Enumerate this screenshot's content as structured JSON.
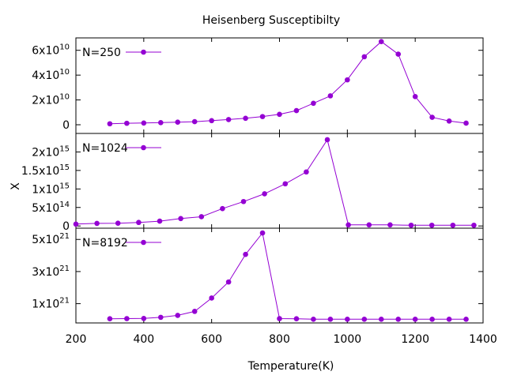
{
  "chart_data": {
    "type": "line",
    "title": "Heisenberg Susceptibilty",
    "xlabel": "Temperature(K)",
    "ylabel": "X",
    "xlim": [
      200,
      1400
    ],
    "xticks": [
      "200",
      "400",
      "600",
      "800",
      "1000",
      "1200",
      "1400"
    ],
    "series_color": "#9400d3",
    "legend_position": "top-left",
    "grid": false,
    "panels": [
      {
        "name": "N=250",
        "ylim": [
          -7000000000.0,
          70000000000.0
        ],
        "yticks": [
          {
            "value": 0,
            "base": "0",
            "exp": ""
          },
          {
            "value": 20000000000.0,
            "base": "2x10",
            "exp": "10"
          },
          {
            "value": 40000000000.0,
            "base": "4x10",
            "exp": "10"
          },
          {
            "value": 60000000000.0,
            "base": "6x10",
            "exp": "10"
          }
        ],
        "x": [
          300,
          350,
          400,
          450,
          500,
          550,
          600,
          650,
          700,
          750,
          800,
          850,
          900,
          950,
          1000,
          1050,
          1100,
          1150,
          1200,
          1250,
          1300,
          1350
        ],
        "y": [
          800000000.0,
          1200000000.0,
          1400000000.0,
          1700000000.0,
          2100000000.0,
          2500000000.0,
          3300000000.0,
          4200000000.0,
          5200000000.0,
          6600000000.0,
          8400000000.0,
          11400000000.0,
          17300000000.0,
          23300000000.0,
          36200000000.0,
          54800000000.0,
          67000000000.0,
          56900000000.0,
          22700000000.0,
          6000000000.0,
          3000000000.0,
          1300000000.0
        ]
      },
      {
        "name": "N=1024",
        "ylim": [
          -60000000000000.0,
          2500000000000000.0
        ],
        "yticks": [
          {
            "value": 0,
            "base": "0",
            "exp": ""
          },
          {
            "value": 500000000000000.0,
            "base": "5x10",
            "exp": "14"
          },
          {
            "value": 1000000000000000.0,
            "base": "1x10",
            "exp": "15"
          },
          {
            "value": 1500000000000000.0,
            "base": "1.5x10",
            "exp": "15"
          },
          {
            "value": 2000000000000000.0,
            "base": "2x10",
            "exp": "15"
          }
        ],
        "x": [
          200,
          262,
          324,
          385,
          447,
          509,
          570,
          632,
          694,
          756,
          817,
          879,
          941,
          1003,
          1064,
          1126,
          1188,
          1249,
          1311,
          1373
        ],
        "y": [
          50000000000000.0,
          70000000000000.0,
          75000000000000.0,
          95000000000000.0,
          130000000000000.0,
          200000000000000.0,
          250000000000000.0,
          470000000000000.0,
          660000000000000.0,
          870000000000000.0,
          1140000000000000.0,
          1460000000000000.0,
          2330000000000000.0,
          30000000000000.0,
          30000000000000.0,
          30000000000000.0,
          20000000000000.0,
          20000000000000.0,
          20000000000000.0,
          20000000000000.0
        ]
      },
      {
        "name": "N=8192",
        "ylim": [
          -2e+20,
          5.7e+21
        ],
        "yticks": [
          {
            "value": 1e+21,
            "base": "1x10",
            "exp": "21"
          },
          {
            "value": 3e+21,
            "base": "3x10",
            "exp": "21"
          },
          {
            "value": 5e+21,
            "base": "5x10",
            "exp": "21"
          }
        ],
        "x": [
          300,
          350,
          400,
          450,
          500,
          550,
          600,
          650,
          700,
          750,
          800,
          850,
          900,
          950,
          1000,
          1050,
          1100,
          1150,
          1200,
          1250,
          1300,
          1350
        ],
        "y": [
          6e+19,
          7e+19,
          8e+19,
          1.5e+20,
          2.7e+20,
          5.2e+20,
          1.35e+21,
          2.35e+21,
          4.07e+21,
          5.4e+21,
          7e+19,
          6e+19,
          3e+19,
          3e+19,
          3e+19,
          3e+19,
          3e+19,
          3e+19,
          3e+19,
          3e+19,
          3e+19,
          3e+19
        ]
      }
    ]
  }
}
